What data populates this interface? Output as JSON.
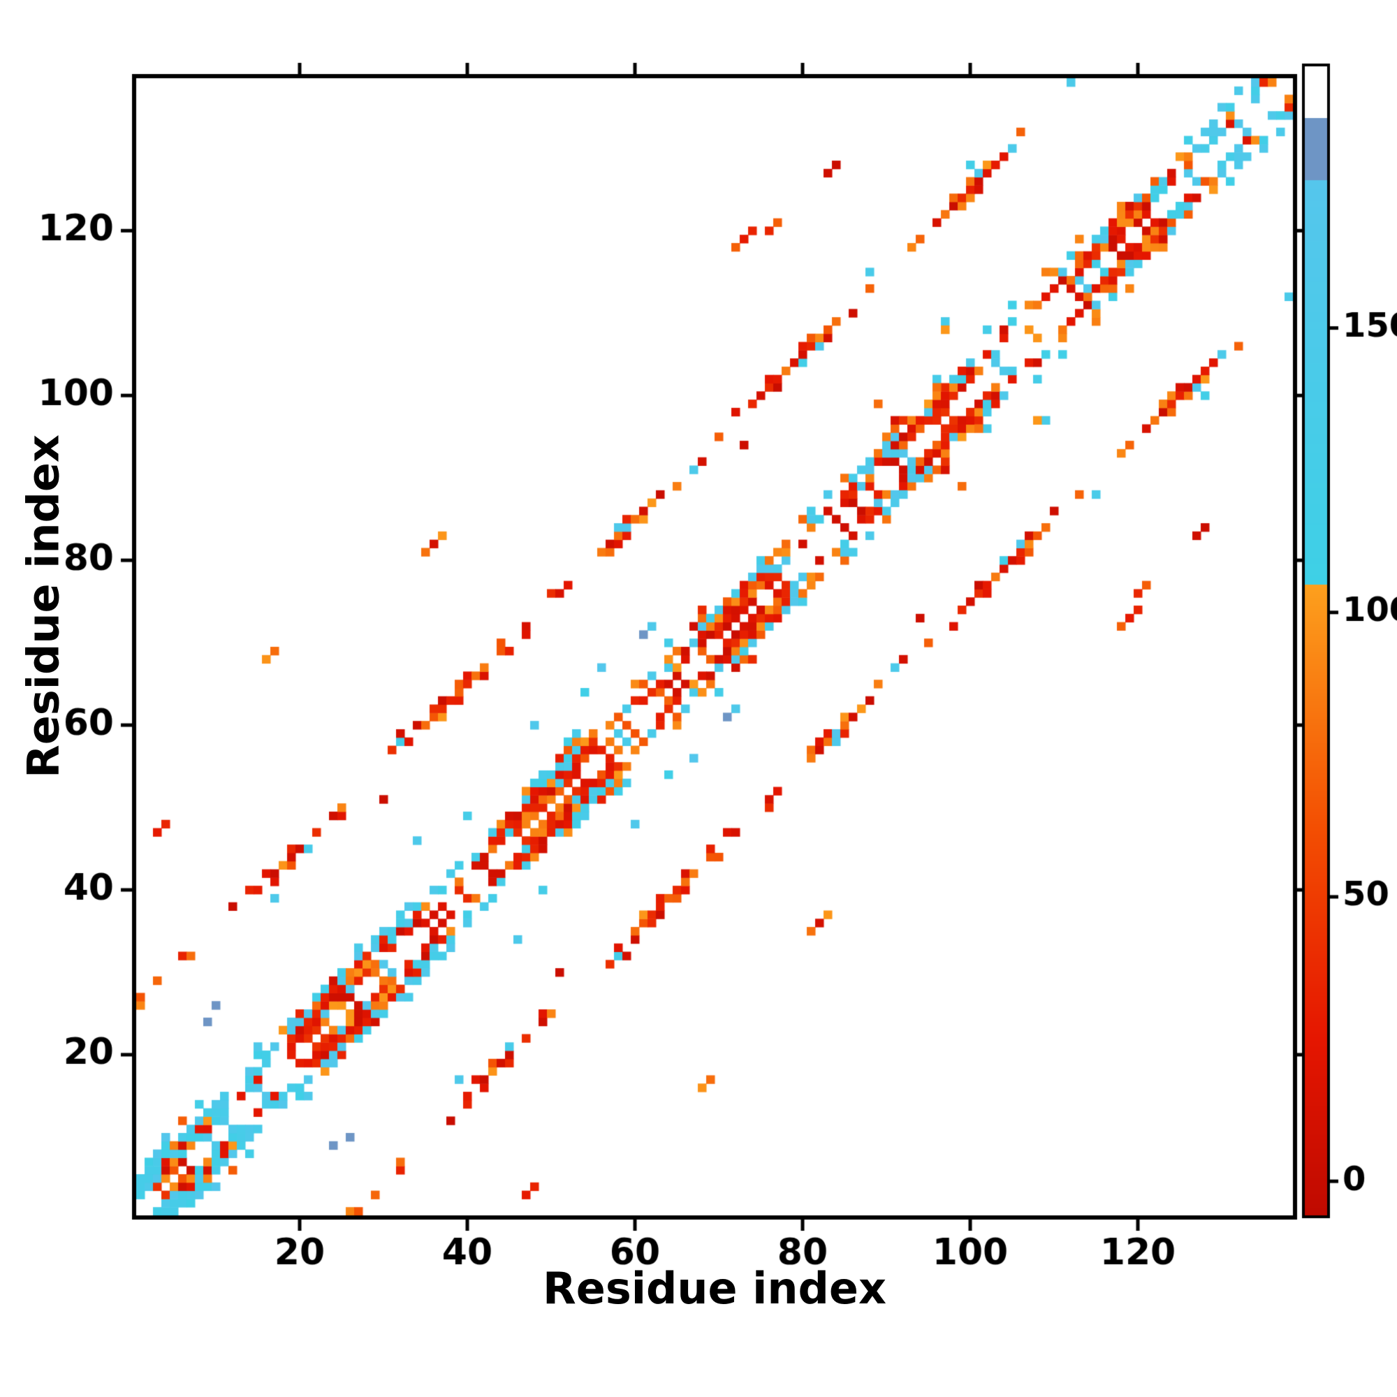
{
  "chart_data": {
    "type": "heatmap",
    "title": "",
    "xlabel": "Residue index",
    "ylabel": "Residue index",
    "x_range": [
      1,
      138
    ],
    "y_range": [
      1,
      138
    ],
    "x_ticks": [
      20,
      40,
      60,
      80,
      100,
      120
    ],
    "y_ticks": [
      20,
      40,
      60,
      80,
      100,
      120
    ],
    "grid": false,
    "background_value_color": "#ffffff",
    "colorbar": {
      "position": "right",
      "ticks": [
        0,
        50,
        100,
        150
      ],
      "vmin": -6,
      "vmax": 196
    },
    "colormap": [
      {
        "from": -6,
        "to": 25,
        "c1": "#bf0a00",
        "c2": "#e51600"
      },
      {
        "from": 25,
        "to": 62,
        "c1": "#e51600",
        "c2": "#f34e02"
      },
      {
        "from": 62,
        "to": 105,
        "c1": "#f34e02",
        "c2": "#fda01d"
      },
      {
        "from": 105,
        "to": 176,
        "c1": "#3ed0e6",
        "c2": "#55c6ec"
      },
      {
        "from": 176,
        "to": 187,
        "c1": "#6e95c5",
        "c2": "#6e95c5"
      },
      {
        "from": 187,
        "to": 196,
        "c1": "#ffffff",
        "c2": "#ffffff"
      }
    ],
    "matrix_spec": {
      "n": 138,
      "symmetric": true,
      "diagonal_masked": true,
      "seed": 137,
      "main_band": {
        "profile": [
          [
            1,
            0.5
          ],
          [
            2,
            0.88
          ],
          [
            3,
            0.9
          ],
          [
            4,
            0.72
          ],
          [
            5,
            0.3
          ],
          [
            6,
            0.12
          ]
        ],
        "blob_period": 23,
        "orange_fraction": 0.25,
        "edge_cyan_fraction": 0.45
      },
      "repeat_band": {
        "offset": 25,
        "halfwidth": 1,
        "center_density": 0.92,
        "edge_density": 0.4,
        "cyan_fraction": 0.12,
        "orange_fraction": 0.33
      },
      "far_band": {
        "offset_min": 44,
        "offset_max": 52,
        "start_probability": 0.09,
        "max_cluster": 3,
        "orange_fraction": 0.42
      },
      "sprinkle_cyan_count": 22,
      "sprinkle_mid_count": 10,
      "value_levels": {
        "red": [
          2,
          44
        ],
        "orange": [
          64,
          102
        ],
        "cyan": [
          110,
          172
        ],
        "steelblue": 181
      },
      "special_cells": [
        {
          "x": 9,
          "y": 24,
          "level": "steelblue"
        },
        {
          "x": 24,
          "y": 9,
          "level": "steelblue"
        },
        {
          "x": 61,
          "y": 71,
          "level": "steelblue"
        },
        {
          "x": 71,
          "y": 61,
          "level": "steelblue"
        },
        {
          "x": 26,
          "y": 10,
          "level": "steelblue"
        },
        {
          "x": 10,
          "y": 26,
          "level": "steelblue"
        },
        {
          "x": 1,
          "y": 4,
          "level": "cyan"
        },
        {
          "x": 1,
          "y": 5,
          "level": "cyan"
        },
        {
          "x": 2,
          "y": 5,
          "level": "cyan"
        },
        {
          "x": 2,
          "y": 6,
          "level": "cyan"
        },
        {
          "x": 3,
          "y": 6,
          "level": "cyan"
        }
      ]
    }
  }
}
